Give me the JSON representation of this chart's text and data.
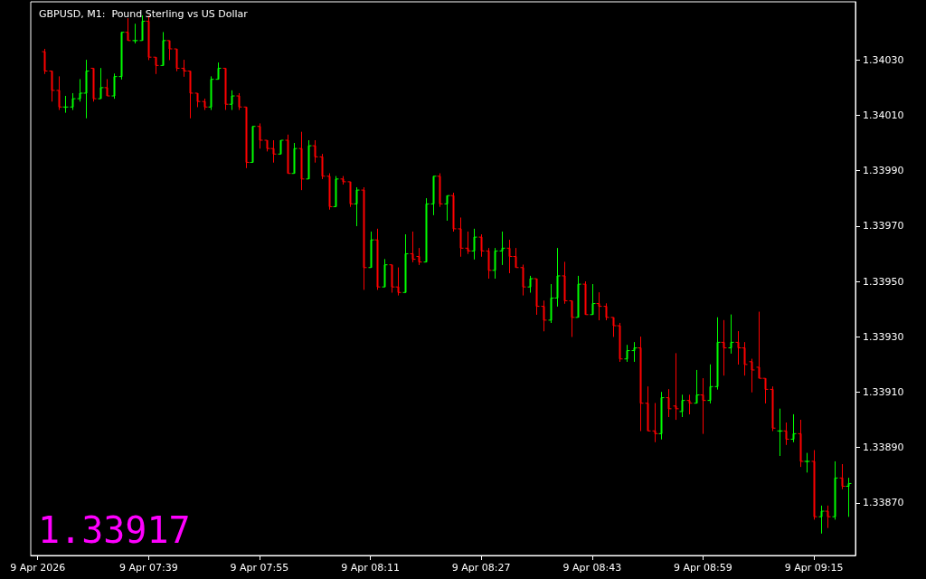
{
  "chart_data": {
    "type": "candlestick",
    "title": "GBPUSD, M1:  Pound Sterling vs US Dollar",
    "annotations": [
      "1.33917"
    ],
    "x": [
      "2026-04-09T07:24",
      "2026-04-09T07:25",
      "2026-04-09T07:26",
      "2026-04-09T07:27",
      "2026-04-09T07:28",
      "2026-04-09T07:29",
      "2026-04-09T07:30",
      "2026-04-09T07:31",
      "2026-04-09T07:32",
      "2026-04-09T07:33",
      "2026-04-09T07:34",
      "2026-04-09T07:35",
      "2026-04-09T07:36",
      "2026-04-09T07:37",
      "2026-04-09T07:38",
      "2026-04-09T07:39",
      "2026-04-09T07:40",
      "2026-04-09T07:41",
      "2026-04-09T07:42",
      "2026-04-09T07:43",
      "2026-04-09T07:44",
      "2026-04-09T07:45",
      "2026-04-09T07:46",
      "2026-04-09T07:47",
      "2026-04-09T07:48",
      "2026-04-09T07:49",
      "2026-04-09T07:50",
      "2026-04-09T07:51",
      "2026-04-09T07:52",
      "2026-04-09T07:53",
      "2026-04-09T07:54",
      "2026-04-09T07:55",
      "2026-04-09T07:56",
      "2026-04-09T07:57",
      "2026-04-09T07:58",
      "2026-04-09T07:59",
      "2026-04-09T08:00",
      "2026-04-09T08:01",
      "2026-04-09T08:02",
      "2026-04-09T08:03",
      "2026-04-09T08:04",
      "2026-04-09T08:05",
      "2026-04-09T08:06",
      "2026-04-09T08:07",
      "2026-04-09T08:08",
      "2026-04-09T08:09",
      "2026-04-09T08:10",
      "2026-04-09T08:11",
      "2026-04-09T08:12",
      "2026-04-09T08:13",
      "2026-04-09T08:14",
      "2026-04-09T08:15",
      "2026-04-09T08:16",
      "2026-04-09T08:17",
      "2026-04-09T08:18",
      "2026-04-09T08:19",
      "2026-04-09T08:20",
      "2026-04-09T08:21",
      "2026-04-09T08:22",
      "2026-04-09T08:23",
      "2026-04-09T08:24",
      "2026-04-09T08:25",
      "2026-04-09T08:26",
      "2026-04-09T08:27",
      "2026-04-09T08:28",
      "2026-04-09T08:29",
      "2026-04-09T08:30",
      "2026-04-09T08:31",
      "2026-04-09T08:32",
      "2026-04-09T08:33",
      "2026-04-09T08:34",
      "2026-04-09T08:35",
      "2026-04-09T08:36",
      "2026-04-09T08:37",
      "2026-04-09T08:38",
      "2026-04-09T08:39",
      "2026-04-09T08:40",
      "2026-04-09T08:41",
      "2026-04-09T08:42",
      "2026-04-09T08:43",
      "2026-04-09T08:44",
      "2026-04-09T08:45",
      "2026-04-09T08:46",
      "2026-04-09T08:47",
      "2026-04-09T08:48",
      "2026-04-09T08:49",
      "2026-04-09T08:50",
      "2026-04-09T08:51",
      "2026-04-09T08:52",
      "2026-04-09T08:53",
      "2026-04-09T08:54",
      "2026-04-09T08:55",
      "2026-04-09T08:56",
      "2026-04-09T08:57",
      "2026-04-09T08:58",
      "2026-04-09T08:59",
      "2026-04-09T09:00",
      "2026-04-09T09:01",
      "2026-04-09T09:02",
      "2026-04-09T09:03",
      "2026-04-09T09:04",
      "2026-04-09T09:05",
      "2026-04-09T09:06",
      "2026-04-09T09:07",
      "2026-04-09T09:08",
      "2026-04-09T09:09",
      "2026-04-09T09:10",
      "2026-04-09T09:11",
      "2026-04-09T09:12",
      "2026-04-09T09:13",
      "2026-04-09T09:14",
      "2026-04-09T09:15",
      "2026-04-09T09:16",
      "2026-04-09T09:17",
      "2026-04-09T09:18",
      "2026-04-09T09:19",
      "2026-04-09T09:20"
    ],
    "ohlc": [
      [
        1.34033,
        1.34034,
        1.34025,
        1.34026
      ],
      [
        1.34026,
        1.34026,
        1.34015,
        1.34019
      ],
      [
        1.34019,
        1.34024,
        1.34012,
        1.34013
      ],
      [
        1.34013,
        1.34017,
        1.34011,
        1.34013
      ],
      [
        1.34013,
        1.34018,
        1.34012,
        1.34016
      ],
      [
        1.34016,
        1.34023,
        1.34015,
        1.34018
      ],
      [
        1.34018,
        1.3403,
        1.34009,
        1.34026
      ],
      [
        1.34027,
        1.34027,
        1.34015,
        1.34016
      ],
      [
        1.34016,
        1.34027,
        1.34016,
        1.3402
      ],
      [
        1.3402,
        1.34023,
        1.34017,
        1.34017
      ],
      [
        1.34017,
        1.34025,
        1.34016,
        1.34024
      ],
      [
        1.34024,
        1.3404,
        1.34023,
        1.3404
      ],
      [
        1.3404,
        1.34045,
        1.34037,
        1.34037
      ],
      [
        1.34037,
        1.34043,
        1.34036,
        1.34037
      ],
      [
        1.34037,
        1.34046,
        1.34037,
        1.34044
      ],
      [
        1.34044,
        1.34046,
        1.3403,
        1.34031
      ],
      [
        1.34031,
        1.34031,
        1.34025,
        1.34028
      ],
      [
        1.34028,
        1.3404,
        1.34028,
        1.34037
      ],
      [
        1.34037,
        1.34037,
        1.3403,
        1.34034
      ],
      [
        1.34034,
        1.34034,
        1.34026,
        1.34027
      ],
      [
        1.34027,
        1.3403,
        1.34024,
        1.34026
      ],
      [
        1.34026,
        1.34026,
        1.34009,
        1.34018
      ],
      [
        1.34018,
        1.34018,
        1.34013,
        1.34015
      ],
      [
        1.34015,
        1.34016,
        1.34012,
        1.34013
      ],
      [
        1.34013,
        1.34024,
        1.34012,
        1.34023
      ],
      [
        1.34023,
        1.34029,
        1.34023,
        1.34027
      ],
      [
        1.34027,
        1.34027,
        1.34012,
        1.34014
      ],
      [
        1.34014,
        1.34019,
        1.34012,
        1.34017
      ],
      [
        1.34017,
        1.34018,
        1.34012,
        1.34013
      ],
      [
        1.34013,
        1.34013,
        1.33991,
        1.33993
      ],
      [
        1.33993,
        1.34006,
        1.33993,
        1.34006
      ],
      [
        1.34006,
        1.34007,
        1.33998,
        1.34001
      ],
      [
        1.34001,
        1.34001,
        1.33997,
        1.33998
      ],
      [
        1.33998,
        1.34001,
        1.33993,
        1.33996
      ],
      [
        1.33996,
        1.34001,
        1.33996,
        1.34001
      ],
      [
        1.34001,
        1.34003,
        1.33989,
        1.33989
      ],
      [
        1.33989,
        1.34,
        1.33989,
        1.33998
      ],
      [
        1.33998,
        1.34004,
        1.33983,
        1.33987
      ],
      [
        1.33987,
        1.34001,
        1.33987,
        1.33999
      ],
      [
        1.33999,
        1.34001,
        1.33993,
        1.33995
      ],
      [
        1.33995,
        1.33996,
        1.33987,
        1.33988
      ],
      [
        1.33988,
        1.33989,
        1.33976,
        1.33977
      ],
      [
        1.33977,
        1.33988,
        1.33977,
        1.33987
      ],
      [
        1.33987,
        1.33988,
        1.33985,
        1.33986
      ],
      [
        1.33986,
        1.33986,
        1.33977,
        1.33978
      ],
      [
        1.33978,
        1.33984,
        1.3397,
        1.33983
      ],
      [
        1.33983,
        1.33984,
        1.33947,
        1.33955
      ],
      [
        1.33955,
        1.33968,
        1.33955,
        1.33965
      ],
      [
        1.33965,
        1.33969,
        1.33947,
        1.33948
      ],
      [
        1.33948,
        1.33958,
        1.33948,
        1.33956
      ],
      [
        1.33956,
        1.33956,
        1.33946,
        1.33948
      ],
      [
        1.33948,
        1.33955,
        1.33945,
        1.33946
      ],
      [
        1.33946,
        1.33967,
        1.33946,
        1.3396
      ],
      [
        1.3396,
        1.33968,
        1.33957,
        1.33958
      ],
      [
        1.33959,
        1.33962,
        1.33956,
        1.33957
      ],
      [
        1.33957,
        1.3398,
        1.33957,
        1.33978
      ],
      [
        1.33978,
        1.33988,
        1.33974,
        1.33988
      ],
      [
        1.33988,
        1.33989,
        1.33977,
        1.33978
      ],
      [
        1.33978,
        1.33981,
        1.33972,
        1.33981
      ],
      [
        1.33981,
        1.33982,
        1.33968,
        1.33969
      ],
      [
        1.33969,
        1.33973,
        1.33959,
        1.33962
      ],
      [
        1.33962,
        1.33968,
        1.3396,
        1.33961
      ],
      [
        1.33961,
        1.33969,
        1.33958,
        1.33966
      ],
      [
        1.33966,
        1.33967,
        1.33959,
        1.33961
      ],
      [
        1.33961,
        1.33962,
        1.33951,
        1.33954
      ],
      [
        1.33954,
        1.33962,
        1.33951,
        1.33961
      ],
      [
        1.33961,
        1.33968,
        1.33956,
        1.33962
      ],
      [
        1.33962,
        1.33965,
        1.33953,
        1.33959
      ],
      [
        1.33959,
        1.33962,
        1.33955,
        1.33955
      ],
      [
        1.33955,
        1.33956,
        1.33945,
        1.33948
      ],
      [
        1.33948,
        1.33952,
        1.33946,
        1.33951
      ],
      [
        1.33951,
        1.33951,
        1.33938,
        1.33941
      ],
      [
        1.33941,
        1.33943,
        1.33932,
        1.33936
      ],
      [
        1.33936,
        1.33949,
        1.33935,
        1.33944
      ],
      [
        1.33944,
        1.33962,
        1.33941,
        1.33952
      ],
      [
        1.33952,
        1.33957,
        1.33942,
        1.33943
      ],
      [
        1.33943,
        1.33943,
        1.3393,
        1.33937
      ],
      [
        1.33937,
        1.33952,
        1.33937,
        1.33949
      ],
      [
        1.33949,
        1.3395,
        1.33938,
        1.33938
      ],
      [
        1.33938,
        1.33949,
        1.33938,
        1.33942
      ],
      [
        1.33942,
        1.33946,
        1.33936,
        1.33941
      ],
      [
        1.33941,
        1.33942,
        1.33936,
        1.33937
      ],
      [
        1.33937,
        1.33937,
        1.3393,
        1.33934
      ],
      [
        1.33934,
        1.33935,
        1.33921,
        1.33922
      ],
      [
        1.33922,
        1.33927,
        1.33921,
        1.33925
      ],
      [
        1.33925,
        1.33928,
        1.33921,
        1.33926
      ],
      [
        1.33926,
        1.3393,
        1.33896,
        1.33906
      ],
      [
        1.33906,
        1.33912,
        1.33896,
        1.33896
      ],
      [
        1.33896,
        1.33906,
        1.33892,
        1.33895
      ],
      [
        1.33895,
        1.3391,
        1.33893,
        1.33908
      ],
      [
        1.33908,
        1.33911,
        1.33901,
        1.33904
      ],
      [
        1.33905,
        1.33924,
        1.339,
        1.33904
      ],
      [
        1.33903,
        1.33909,
        1.33901,
        1.33907
      ],
      [
        1.33907,
        1.33909,
        1.33902,
        1.33906
      ],
      [
        1.33906,
        1.33918,
        1.33906,
        1.33909
      ],
      [
        1.33909,
        1.33915,
        1.33895,
        1.33907
      ],
      [
        1.33907,
        1.3392,
        1.33906,
        1.33912
      ],
      [
        1.33912,
        1.33937,
        1.33911,
        1.33928
      ],
      [
        1.33928,
        1.33936,
        1.33916,
        1.33926
      ],
      [
        1.33926,
        1.33938,
        1.33924,
        1.33928
      ],
      [
        1.33928,
        1.33932,
        1.3392,
        1.33926
      ],
      [
        1.33926,
        1.33928,
        1.33916,
        1.3392
      ],
      [
        1.33921,
        1.33922,
        1.3391,
        1.33918
      ],
      [
        1.33919,
        1.33939,
        1.33915,
        1.33915
      ],
      [
        1.33915,
        1.33915,
        1.33906,
        1.33911
      ],
      [
        1.33911,
        1.33912,
        1.33896,
        1.33897
      ],
      [
        1.33896,
        1.33904,
        1.33887,
        1.33896
      ],
      [
        1.33896,
        1.33899,
        1.33891,
        1.33893
      ],
      [
        1.33893,
        1.33902,
        1.33892,
        1.33895
      ],
      [
        1.33895,
        1.339,
        1.33883,
        1.33885
      ],
      [
        1.33885,
        1.33888,
        1.33881,
        1.33885
      ],
      [
        1.33885,
        1.33889,
        1.33864,
        1.33865
      ],
      [
        1.33865,
        1.33869,
        1.33859,
        1.33867
      ],
      [
        1.33867,
        1.33869,
        1.33861,
        1.33865
      ],
      [
        1.33865,
        1.33885,
        1.33864,
        1.33879
      ],
      [
        1.33879,
        1.33884,
        1.33875,
        1.33876
      ],
      [
        1.33876,
        1.33879,
        1.33865,
        1.33877
      ]
    ],
    "colors": [
      "#ff0000",
      "#ff0000",
      "#ff0000",
      "#00ff00",
      "#00ff00",
      "#00ff00",
      "#00ff00",
      "#ff0000",
      "#00ff00",
      "#ff0000",
      "#00ff00",
      "#00ff00",
      "#ff0000",
      "#00ff00",
      "#00ff00",
      "#ff0000",
      "#ff0000",
      "#00ff00",
      "#ff0000",
      "#ff0000",
      "#ff0000",
      "#ff0000",
      "#ff0000",
      "#ff0000",
      "#00ff00",
      "#00ff00",
      "#ff0000",
      "#00ff00",
      "#ff0000",
      "#ff0000",
      "#00ff00",
      "#ff0000",
      "#ff0000",
      "#ff0000",
      "#00ff00",
      "#ff0000",
      "#00ff00",
      "#ff0000",
      "#00ff00",
      "#ff0000",
      "#ff0000",
      "#ff0000",
      "#00ff00",
      "#ff0000",
      "#ff0000",
      "#00ff00",
      "#ff0000",
      "#00ff00",
      "#ff0000",
      "#00ff00",
      "#ff0000",
      "#ff0000",
      "#00ff00",
      "#ff0000",
      "#ff0000",
      "#00ff00",
      "#00ff00",
      "#ff0000",
      "#00ff00",
      "#ff0000",
      "#ff0000",
      "#ff0000",
      "#00ff00",
      "#ff0000",
      "#ff0000",
      "#00ff00",
      "#00ff00",
      "#ff0000",
      "#ff0000",
      "#ff0000",
      "#00ff00",
      "#ff0000",
      "#ff0000",
      "#00ff00",
      "#00ff00",
      "#ff0000",
      "#ff0000",
      "#00ff00",
      "#ff0000",
      "#00ff00",
      "#ff0000",
      "#ff0000",
      "#ff0000",
      "#ff0000",
      "#00ff00",
      "#00ff00",
      "#ff0000",
      "#ff0000",
      "#ff0000",
      "#00ff00",
      "#ff0000",
      "#ff0000",
      "#00ff00",
      "#ff0000",
      "#00ff00",
      "#ff0000",
      "#00ff00",
      "#00ff00",
      "#ff0000",
      "#00ff00",
      "#ff0000",
      "#ff0000",
      "#ff0000",
      "#ff0000",
      "#ff0000",
      "#ff0000",
      "#00ff00",
      "#ff0000",
      "#00ff00",
      "#ff0000",
      "#00ff00",
      "#ff0000",
      "#00ff00",
      "#ff0000",
      "#00ff00",
      "#ff0000",
      "#00ff00"
    ],
    "xlim": [
      "2026-04-09T07:22",
      "2026-04-09T09:21"
    ],
    "xticks": [
      {
        "value": "2026-04-09T07:23",
        "label": "9 Apr 2026"
      },
      {
        "value": "2026-04-09T07:39",
        "label": "9 Apr 07:39"
      },
      {
        "value": "2026-04-09T07:55",
        "label": "9 Apr 07:55"
      },
      {
        "value": "2026-04-09T08:11",
        "label": "9 Apr 08:11"
      },
      {
        "value": "2026-04-09T08:27",
        "label": "9 Apr 08:27"
      },
      {
        "value": "2026-04-09T08:43",
        "label": "9 Apr 08:43"
      },
      {
        "value": "2026-04-09T08:59",
        "label": "9 Apr 08:59"
      },
      {
        "value": "2026-04-09T09:15",
        "label": "9 Apr 09:15"
      }
    ],
    "ylim": [
      1.33851,
      1.34051
    ],
    "yticks": [
      {
        "value": 1.3387,
        "label": "1.33870"
      },
      {
        "value": 1.3389,
        "label": "1.33890"
      },
      {
        "value": 1.3391,
        "label": "1.33910"
      },
      {
        "value": 1.3393,
        "label": "1.33930"
      },
      {
        "value": 1.3395,
        "label": "1.33950"
      },
      {
        "value": 1.3397,
        "label": "1.33970"
      },
      {
        "value": 1.3399,
        "label": "1.33990"
      },
      {
        "value": 1.3401,
        "label": "1.34010"
      },
      {
        "value": 1.3403,
        "label": "1.34030"
      }
    ]
  }
}
